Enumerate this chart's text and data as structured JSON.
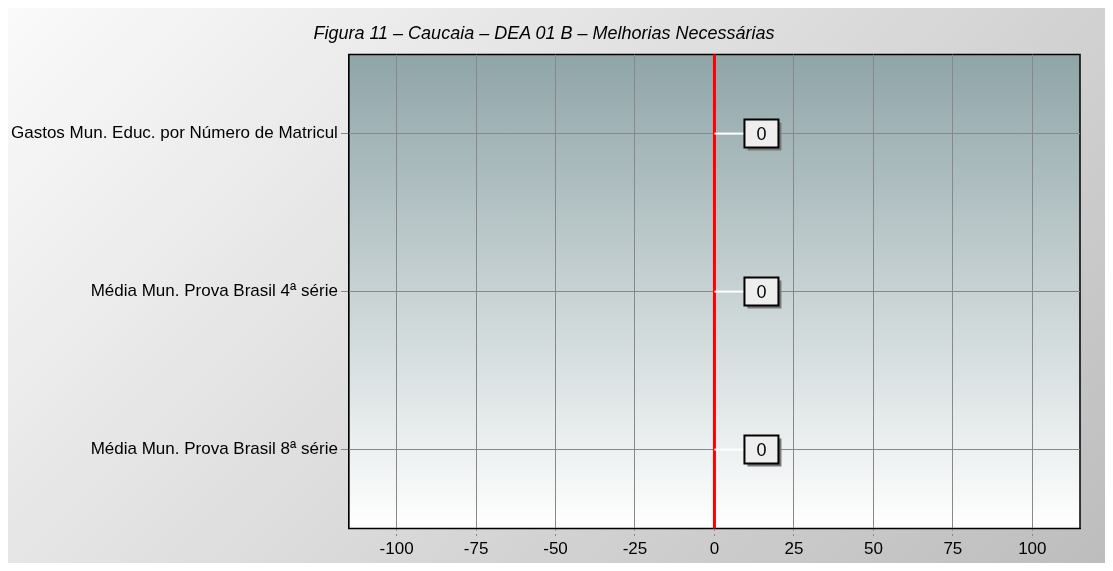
{
  "chart_data": {
    "type": "bar",
    "orientation": "horizontal",
    "title": "Figura 11 – Caucaia – DEA 01 B – Melhorias Necessárias",
    "categories": [
      "Gastos Mun. Educ. por Número de Matricul",
      "Média Mun. Prova Brasil 4ª série",
      "Média Mun. Prova Brasil 8ª série"
    ],
    "values": [
      0,
      0,
      0
    ],
    "xlim": [
      -115,
      115
    ],
    "xticks": [
      -100,
      -75,
      -50,
      -25,
      0,
      25,
      50,
      75,
      100
    ],
    "ref_lines": [
      {
        "axis": "x",
        "value": 0,
        "color": "#ff0000"
      }
    ],
    "grid": true,
    "data_labels": true,
    "legend": false
  }
}
